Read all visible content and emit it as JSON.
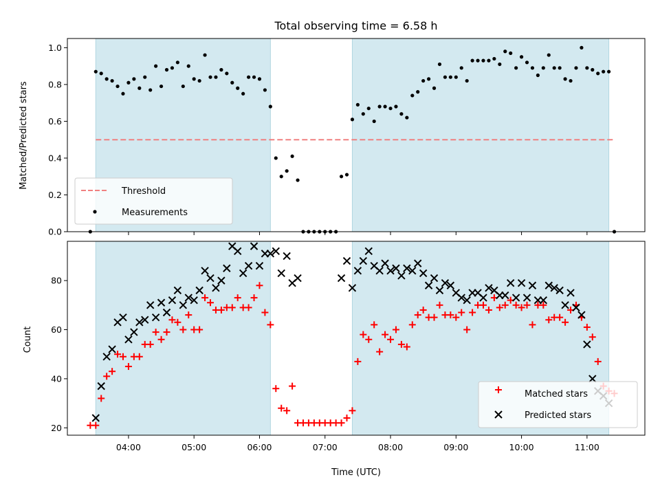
{
  "title": "Total observing time = 6.58 h",
  "chart_data": [
    {
      "type": "scatter",
      "ylabel": "Matched/Predicted stars",
      "xlabel": "",
      "ylim": [
        0,
        1.05
      ],
      "yticks": [
        0.0,
        0.2,
        0.4,
        0.6,
        0.8,
        1.0
      ],
      "ytick_labels": [
        "0.0",
        "0.2",
        "0.4",
        "0.6",
        "0.8",
        "1.0"
      ],
      "threshold": {
        "name": "Threshold",
        "value": 0.5,
        "color": "#f08080",
        "style": "dashed"
      },
      "legend": {
        "placement": "lower-left"
      },
      "series": [
        {
          "name": "Measurements",
          "color": "#000000",
          "marker": "dot",
          "x": [
            "03:25",
            "03:30",
            "03:35",
            "03:40",
            "03:45",
            "03:50",
            "03:55",
            "04:00",
            "04:05",
            "04:10",
            "04:15",
            "04:20",
            "04:25",
            "04:30",
            "04:35",
            "04:40",
            "04:45",
            "04:50",
            "04:55",
            "05:00",
            "05:05",
            "05:10",
            "05:15",
            "05:20",
            "05:25",
            "05:30",
            "05:35",
            "05:40",
            "05:45",
            "05:50",
            "05:55",
            "06:00",
            "06:05",
            "06:10",
            "06:15",
            "06:20",
            "06:25",
            "06:30",
            "06:35",
            "06:40",
            "06:45",
            "06:50",
            "06:55",
            "07:00",
            "07:05",
            "07:10",
            "07:15",
            "07:20",
            "07:25",
            "07:30",
            "07:35",
            "07:40",
            "07:45",
            "07:50",
            "07:55",
            "08:00",
            "08:05",
            "08:10",
            "08:15",
            "08:20",
            "08:25",
            "08:30",
            "08:35",
            "08:40",
            "08:45",
            "08:50",
            "08:55",
            "09:00",
            "09:05",
            "09:10",
            "09:15",
            "09:20",
            "09:25",
            "09:30",
            "09:35",
            "09:40",
            "09:45",
            "09:50",
            "09:55",
            "10:00",
            "10:05",
            "10:10",
            "10:15",
            "10:20",
            "10:25",
            "10:30",
            "10:35",
            "10:40",
            "10:45",
            "10:50",
            "10:55",
            "11:00",
            "11:05",
            "11:10",
            "11:15",
            "11:20",
            "11:25"
          ],
          "y": [
            0.0,
            0.87,
            0.86,
            0.83,
            0.82,
            0.79,
            0.75,
            0.81,
            0.83,
            0.78,
            0.84,
            0.77,
            0.9,
            0.79,
            0.88,
            0.89,
            0.92,
            0.79,
            0.9,
            0.83,
            0.82,
            0.96,
            0.84,
            0.84,
            0.88,
            0.86,
            0.81,
            0.78,
            0.75,
            0.84,
            0.84,
            0.83,
            0.77,
            0.68,
            0.4,
            0.3,
            0.33,
            0.41,
            0.28,
            0.0,
            0.0,
            0.0,
            0.0,
            0.0,
            0.0,
            0.0,
            0.3,
            0.31,
            0.61,
            0.69,
            0.64,
            0.67,
            0.6,
            0.68,
            0.68,
            0.67,
            0.68,
            0.64,
            0.62,
            0.74,
            0.76,
            0.82,
            0.83,
            0.78,
            0.91,
            0.84,
            0.84,
            0.84,
            0.89,
            0.82,
            0.93,
            0.93,
            0.93,
            0.93,
            0.94,
            0.91,
            0.98,
            0.97,
            0.89,
            0.95,
            0.92,
            0.89,
            0.85,
            0.89,
            0.96,
            0.89,
            0.89,
            0.83,
            0.82,
            0.89,
            1.0,
            0.89,
            0.88,
            0.86,
            0.87,
            0.87,
            0.0
          ]
        }
      ],
      "shaded_regions": [
        [
          "03:30",
          "06:10"
        ],
        [
          "07:25",
          "11:20"
        ]
      ],
      "shade_color": "#d3e9f0"
    },
    {
      "type": "scatter",
      "ylabel": "Count",
      "xlabel": "Time (UTC)",
      "ylim": [
        17,
        96
      ],
      "yticks": [
        20,
        40,
        60,
        80
      ],
      "ytick_labels": [
        "20",
        "40",
        "60",
        "80"
      ],
      "xticks": [
        "04:00",
        "05:00",
        "06:00",
        "07:00",
        "08:00",
        "09:00",
        "10:00",
        "11:00"
      ],
      "xlim": [
        "03:04",
        "11:53"
      ],
      "legend": {
        "placement": "lower-right"
      },
      "series": [
        {
          "name": "Matched stars",
          "color": "#ff0000",
          "marker": "plus",
          "x": [
            "03:25",
            "03:30",
            "03:35",
            "03:40",
            "03:45",
            "03:50",
            "03:55",
            "04:00",
            "04:05",
            "04:10",
            "04:15",
            "04:20",
            "04:25",
            "04:30",
            "04:35",
            "04:40",
            "04:45",
            "04:50",
            "04:55",
            "05:00",
            "05:05",
            "05:10",
            "05:15",
            "05:20",
            "05:25",
            "05:30",
            "05:35",
            "05:40",
            "05:45",
            "05:50",
            "05:55",
            "06:00",
            "06:05",
            "06:10",
            "06:15",
            "06:20",
            "06:25",
            "06:30",
            "06:35",
            "06:40",
            "06:45",
            "06:50",
            "06:55",
            "07:00",
            "07:05",
            "07:10",
            "07:15",
            "07:20",
            "07:25",
            "07:30",
            "07:35",
            "07:40",
            "07:45",
            "07:50",
            "07:55",
            "08:00",
            "08:05",
            "08:10",
            "08:15",
            "08:20",
            "08:25",
            "08:30",
            "08:35",
            "08:40",
            "08:45",
            "08:50",
            "08:55",
            "09:00",
            "09:05",
            "09:10",
            "09:15",
            "09:20",
            "09:25",
            "09:30",
            "09:35",
            "09:40",
            "09:45",
            "09:50",
            "09:55",
            "10:00",
            "10:05",
            "10:10",
            "10:15",
            "10:20",
            "10:25",
            "10:30",
            "10:35",
            "10:40",
            "10:45",
            "10:50",
            "10:55",
            "11:00",
            "11:05",
            "11:10",
            "11:15",
            "11:20",
            "11:25"
          ],
          "y": [
            21,
            21,
            32,
            41,
            43,
            50,
            49,
            45,
            49,
            49,
            54,
            54,
            59,
            56,
            59,
            64,
            63,
            60,
            66,
            60,
            60,
            73,
            71,
            68,
            68,
            69,
            69,
            73,
            69,
            69,
            73,
            78,
            67,
            62,
            36,
            28,
            27,
            37,
            22,
            22,
            22,
            22,
            22,
            22,
            22,
            22,
            22,
            24,
            27,
            47,
            58,
            56,
            62,
            51,
            58,
            56,
            60,
            54,
            53,
            62,
            66,
            68,
            65,
            65,
            70,
            66,
            66,
            65,
            67,
            60,
            67,
            70,
            70,
            68,
            73,
            69,
            70,
            72,
            70,
            69,
            70,
            62,
            70,
            70,
            64,
            65,
            65,
            63,
            68,
            70,
            65,
            61,
            57,
            47,
            37,
            35,
            34
          ]
        },
        {
          "name": "Predicted stars",
          "color": "#000000",
          "marker": "x",
          "x": [
            "03:30",
            "03:35",
            "03:40",
            "03:45",
            "03:50",
            "03:55",
            "04:00",
            "04:05",
            "04:10",
            "04:15",
            "04:20",
            "04:25",
            "04:30",
            "04:35",
            "04:40",
            "04:45",
            "04:50",
            "04:55",
            "05:00",
            "05:05",
            "05:10",
            "05:15",
            "05:20",
            "05:25",
            "05:30",
            "05:35",
            "05:40",
            "05:45",
            "05:50",
            "05:55",
            "06:00",
            "06:05",
            "06:10",
            "06:15",
            "06:20",
            "06:25",
            "06:30",
            "06:35",
            "07:15",
            "07:20",
            "07:25",
            "07:30",
            "07:35",
            "07:40",
            "07:45",
            "07:50",
            "07:55",
            "08:00",
            "08:05",
            "08:10",
            "08:15",
            "08:20",
            "08:25",
            "08:30",
            "08:35",
            "08:40",
            "08:45",
            "08:50",
            "08:55",
            "09:00",
            "09:05",
            "09:10",
            "09:15",
            "09:20",
            "09:25",
            "09:30",
            "09:35",
            "09:40",
            "09:45",
            "09:50",
            "09:55",
            "10:00",
            "10:05",
            "10:10",
            "10:15",
            "10:20",
            "10:25",
            "10:30",
            "10:35",
            "10:40",
            "10:45",
            "10:50",
            "10:55",
            "11:00",
            "11:05",
            "11:10",
            "11:15",
            "11:20"
          ],
          "y": [
            24,
            37,
            49,
            52,
            63,
            65,
            56,
            59,
            63,
            64,
            70,
            65,
            71,
            67,
            72,
            76,
            70,
            73,
            72,
            76,
            84,
            81,
            77,
            80,
            85,
            94,
            92,
            83,
            86,
            94,
            86,
            91,
            91,
            92,
            83,
            90,
            79,
            81,
            81,
            88,
            77,
            84,
            88,
            92,
            86,
            84,
            87,
            84,
            85,
            82,
            85,
            84,
            87,
            83,
            78,
            81,
            76,
            79,
            78,
            75,
            73,
            72,
            75,
            75,
            73,
            77,
            76,
            74,
            74,
            79,
            73,
            79,
            73,
            78,
            72,
            72,
            78,
            77,
            76,
            70,
            75,
            69,
            66,
            54,
            40,
            35,
            33,
            30
          ]
        }
      ],
      "shaded_regions": [
        [
          "03:30",
          "06:10"
        ],
        [
          "07:25",
          "11:20"
        ]
      ],
      "shade_color": "#d3e9f0"
    }
  ]
}
